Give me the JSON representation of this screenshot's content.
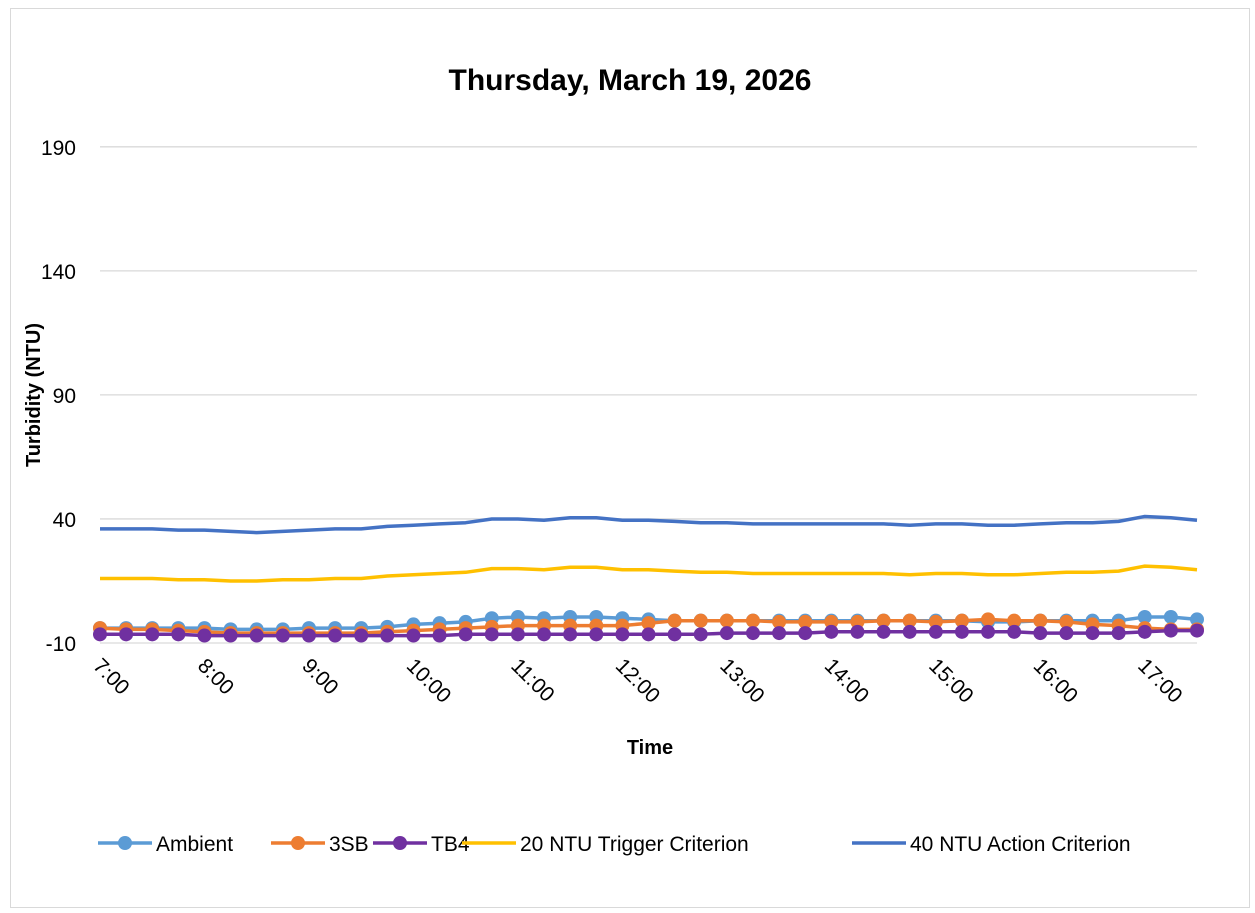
{
  "chart_data": {
    "type": "line",
    "title": "Thursday, March 19, 2026",
    "xlabel": "Time",
    "ylabel": "Turbidity (NTU)",
    "ylim": [
      -10,
      200
    ],
    "yticks": [
      -10,
      40,
      90,
      140,
      190
    ],
    "xticks": [
      "7:00",
      "8:00",
      "9:00",
      "10:00",
      "11:00",
      "12:00",
      "13:00",
      "14:00",
      "15:00",
      "16:00",
      "17:00"
    ],
    "x": [
      "7:00",
      "7:15",
      "7:30",
      "7:45",
      "8:00",
      "8:15",
      "8:30",
      "8:45",
      "9:00",
      "9:15",
      "9:30",
      "9:45",
      "10:00",
      "10:15",
      "10:30",
      "10:45",
      "11:00",
      "11:15",
      "11:30",
      "11:45",
      "12:00",
      "12:15",
      "12:30",
      "12:45",
      "13:00",
      "13:15",
      "13:30",
      "13:45",
      "14:00",
      "14:15",
      "14:30",
      "14:45",
      "15:00",
      "15:15",
      "15:30",
      "15:45",
      "16:00",
      "16:15",
      "16:30",
      "16:45",
      "17:00",
      "17:15",
      "17:30"
    ],
    "grid": "horizontal",
    "legend_position": "bottom",
    "series": [
      {
        "name": "Ambient",
        "color": "#5B9BD5",
        "marker": true,
        "values": [
          -4,
          -4,
          -4,
          -4,
          -4,
          -4.5,
          -4.5,
          -4.5,
          -4,
          -4,
          -4,
          -3.5,
          -2.5,
          -2,
          -1.5,
          0,
          0.5,
          0,
          0.5,
          0.5,
          0,
          -0.5,
          -1,
          -1,
          -1,
          -1,
          -1,
          -1,
          -1,
          -1,
          -1,
          -1,
          -1,
          -1,
          -1.5,
          -1.5,
          -1,
          -1,
          -1,
          -1,
          0.5,
          0.5,
          -0.5
        ]
      },
      {
        "name": "3SB",
        "color": "#ED7D31",
        "marker": true,
        "values": [
          -4,
          -4.5,
          -4.5,
          -5,
          -5.5,
          -6,
          -6,
          -6,
          -6,
          -6,
          -6,
          -5.5,
          -5,
          -4.5,
          -4,
          -3.5,
          -3,
          -3,
          -3,
          -3,
          -3,
          -2,
          -1,
          -1,
          -1,
          -1,
          -1.5,
          -1.5,
          -1.5,
          -1.5,
          -1,
          -1,
          -1.5,
          -1,
          -0.5,
          -1,
          -1,
          -1.5,
          -2.5,
          -3,
          -4,
          -4.5,
          -4.5
        ]
      },
      {
        "name": "TB4",
        "color": "#7030A0",
        "marker": true,
        "values": [
          -6.5,
          -6.5,
          -6.5,
          -6.5,
          -7,
          -7,
          -7,
          -7,
          -7,
          -7,
          -7,
          -7,
          -7,
          -7,
          -6.5,
          -6.5,
          -6.5,
          -6.5,
          -6.5,
          -6.5,
          -6.5,
          -6.5,
          -6.5,
          -6.5,
          -6,
          -6,
          -6,
          -6,
          -5.5,
          -5.5,
          -5.5,
          -5.5,
          -5.5,
          -5.5,
          -5.5,
          -5.5,
          -6,
          -6,
          -6,
          -6,
          -5.5,
          -5,
          -5
        ]
      },
      {
        "name": "20 NTU Trigger Criterion",
        "color": "#FFC000",
        "marker": false,
        "values": [
          16,
          16,
          16,
          15.5,
          15.5,
          15,
          15,
          15.5,
          15.5,
          16,
          16,
          17,
          17.5,
          18,
          18.5,
          20,
          20,
          19.5,
          20.5,
          20.5,
          19.5,
          19.5,
          19,
          18.5,
          18.5,
          18,
          18,
          18,
          18,
          18,
          18,
          17.5,
          18,
          18,
          17.5,
          17.5,
          18,
          18.5,
          18.5,
          19,
          21,
          20.5,
          19.5
        ]
      },
      {
        "name": "40 NTU Action Criterion",
        "color": "#4472C4",
        "marker": false,
        "values": [
          36,
          36,
          36,
          35.5,
          35.5,
          35,
          34.5,
          35,
          35.5,
          36,
          36,
          37,
          37.5,
          38,
          38.5,
          40,
          40,
          39.5,
          40.5,
          40.5,
          39.5,
          39.5,
          39,
          38.5,
          38.5,
          38,
          38,
          38,
          38,
          38,
          38,
          37.5,
          38,
          38,
          37.5,
          37.5,
          38,
          38.5,
          38.5,
          39,
          41,
          40.5,
          39.5
        ]
      }
    ]
  }
}
